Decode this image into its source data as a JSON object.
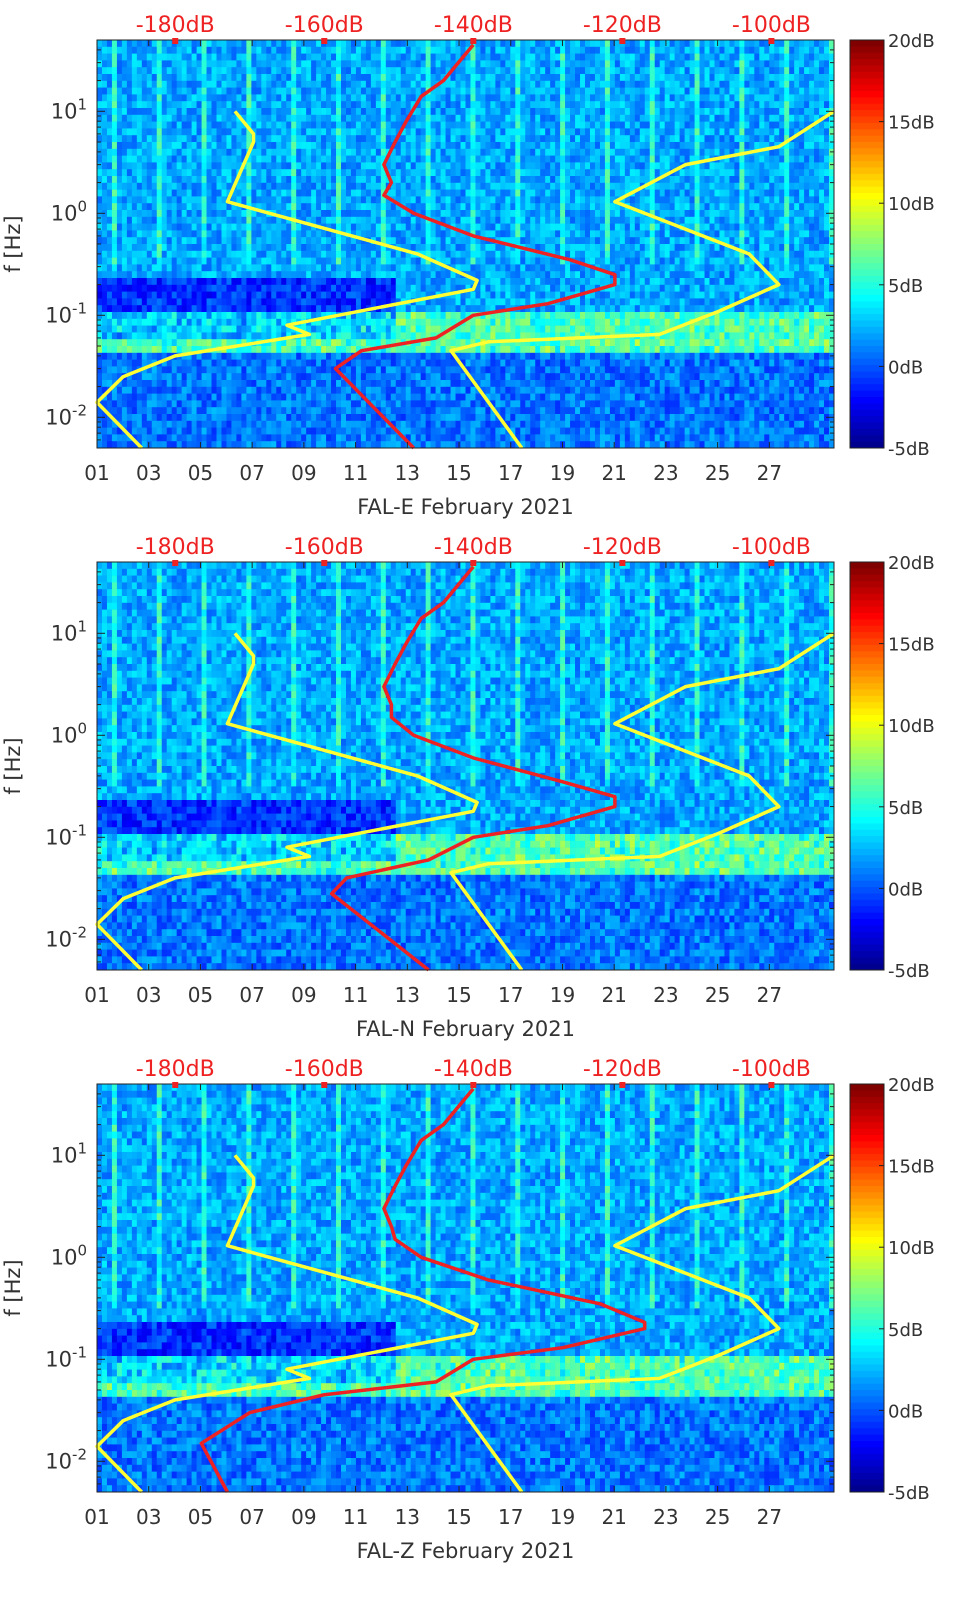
{
  "chart_data": [
    {
      "type": "heatmap",
      "title": "",
      "xlabel": "FAL-E February 2021",
      "ylabel": "f [Hz]",
      "yscale": "log",
      "ylim": [
        0.005,
        50
      ],
      "xlim": [
        1,
        29.5
      ],
      "x_ticks": [
        "01",
        "03",
        "05",
        "07",
        "09",
        "11",
        "13",
        "15",
        "17",
        "19",
        "21",
        "23",
        "25",
        "27"
      ],
      "y_ticks": [
        {
          "value": 0.01,
          "base": "10",
          "exp": "-2"
        },
        {
          "value": 0.1,
          "base": "10",
          "exp": "-1"
        },
        {
          "value": 1,
          "base": "10",
          "exp": "0"
        },
        {
          "value": 10,
          "base": "10",
          "exp": "1"
        }
      ],
      "top_axis": {
        "labels": [
          "-180dB",
          "-160dB",
          "-140dB",
          "-120dB",
          "-100dB"
        ],
        "values": [
          -180,
          -160,
          -140,
          -120,
          -100
        ],
        "xlim": [
          -190.5,
          -91.6
        ]
      },
      "colorbar": {
        "labels": [
          "20dB",
          "15dB",
          "10dB",
          "5dB",
          "0dB",
          "-5dB"
        ],
        "values": [
          20,
          15,
          10,
          5,
          0,
          -5
        ],
        "colormap": "jet"
      },
      "series": [
        {
          "color": "#ffff33",
          "axis": "top",
          "points": [
            [
              -184.5,
              0.005
            ],
            [
              -190.5,
              0.014
            ],
            [
              -187,
              0.025
            ],
            [
              -180,
              0.04
            ],
            [
              -162,
              0.065
            ],
            [
              -165,
              0.08
            ],
            [
              -140,
              0.18
            ],
            [
              -139.5,
              0.22
            ],
            [
              -147.5,
              0.4
            ],
            [
              -173,
              1.3
            ],
            [
              -169.5,
              5
            ],
            [
              -169.5,
              6
            ],
            [
              -172,
              10
            ]
          ]
        },
        {
          "color": "#ffff33",
          "axis": "top",
          "points": [
            [
              -133.5,
              0.005
            ],
            [
              -143,
              0.045
            ],
            [
              -138,
              0.055
            ],
            [
              -115,
              0.065
            ],
            [
              -107,
              0.11
            ],
            [
              -99,
              0.2
            ],
            [
              -103,
              0.4
            ],
            [
              -121,
              1.3
            ],
            [
              -111.5,
              3
            ],
            [
              -99,
              4.5
            ],
            [
              -91.6,
              10
            ]
          ]
        },
        {
          "color": "#ee2222",
          "axis": "top",
          "points": [
            [
              -148,
              0.005
            ],
            [
              -158.5,
              0.03
            ],
            [
              -155,
              0.045
            ],
            [
              -145,
              0.06
            ],
            [
              -140,
              0.1
            ],
            [
              -130,
              0.13
            ],
            [
              -121,
              0.2
            ],
            [
              -121,
              0.25
            ],
            [
              -127,
              0.35
            ],
            [
              -140,
              0.6
            ],
            [
              -148,
              1
            ],
            [
              -152,
              1.5
            ],
            [
              -151,
              2
            ],
            [
              -152,
              3
            ],
            [
              -150.5,
              5
            ],
            [
              -149,
              8
            ],
            [
              -147,
              14
            ],
            [
              -144,
              20
            ],
            [
              -142,
              30
            ],
            [
              -140,
              45
            ]
          ]
        }
      ]
    },
    {
      "type": "heatmap",
      "title": "",
      "xlabel": "FAL-N February 2021",
      "ylabel": "f [Hz]",
      "yscale": "log",
      "ylim": [
        0.005,
        50
      ],
      "xlim": [
        1,
        29.5
      ],
      "x_ticks": [
        "01",
        "03",
        "05",
        "07",
        "09",
        "11",
        "13",
        "15",
        "17",
        "19",
        "21",
        "23",
        "25",
        "27"
      ],
      "y_ticks": [
        {
          "value": 0.01,
          "base": "10",
          "exp": "-2"
        },
        {
          "value": 0.1,
          "base": "10",
          "exp": "-1"
        },
        {
          "value": 1,
          "base": "10",
          "exp": "0"
        },
        {
          "value": 10,
          "base": "10",
          "exp": "1"
        }
      ],
      "top_axis": {
        "labels": [
          "-180dB",
          "-160dB",
          "-140dB",
          "-120dB",
          "-100dB"
        ],
        "values": [
          -180,
          -160,
          -140,
          -120,
          -100
        ],
        "xlim": [
          -190.5,
          -91.6
        ]
      },
      "colorbar": {
        "labels": [
          "20dB",
          "15dB",
          "10dB",
          "5dB",
          "0dB",
          "-5dB"
        ],
        "values": [
          20,
          15,
          10,
          5,
          0,
          -5
        ],
        "colormap": "jet"
      },
      "series": [
        {
          "color": "#ffff33",
          "axis": "top",
          "points": [
            [
              -184.5,
              0.005
            ],
            [
              -190.5,
              0.014
            ],
            [
              -187,
              0.025
            ],
            [
              -180,
              0.04
            ],
            [
              -162,
              0.065
            ],
            [
              -165,
              0.08
            ],
            [
              -140,
              0.18
            ],
            [
              -139.5,
              0.22
            ],
            [
              -147.5,
              0.4
            ],
            [
              -173,
              1.3
            ],
            [
              -169.5,
              5
            ],
            [
              -169.5,
              6
            ],
            [
              -172,
              10
            ]
          ]
        },
        {
          "color": "#ffff33",
          "axis": "top",
          "points": [
            [
              -133.5,
              0.005
            ],
            [
              -143,
              0.045
            ],
            [
              -138,
              0.055
            ],
            [
              -115,
              0.065
            ],
            [
              -107,
              0.11
            ],
            [
              -99,
              0.2
            ],
            [
              -103,
              0.4
            ],
            [
              -121,
              1.3
            ],
            [
              -111.5,
              3
            ],
            [
              -99,
              4.5
            ],
            [
              -91.6,
              10
            ]
          ]
        },
        {
          "color": "#ee2222",
          "axis": "top",
          "points": [
            [
              -146,
              0.005
            ],
            [
              -159,
              0.028
            ],
            [
              -157,
              0.04
            ],
            [
              -146,
              0.06
            ],
            [
              -140,
              0.1
            ],
            [
              -130,
              0.13
            ],
            [
              -121,
              0.2
            ],
            [
              -121,
              0.25
            ],
            [
              -128,
              0.35
            ],
            [
              -140,
              0.6
            ],
            [
              -148,
              1
            ],
            [
              -151,
              1.5
            ],
            [
              -151,
              2
            ],
            [
              -152,
              3
            ],
            [
              -150.5,
              5
            ],
            [
              -149,
              8
            ],
            [
              -147,
              14
            ],
            [
              -144,
              20
            ],
            [
              -142,
              30
            ],
            [
              -140,
              45
            ]
          ]
        }
      ]
    },
    {
      "type": "heatmap",
      "title": "",
      "xlabel": "FAL-Z February 2021",
      "ylabel": "f [Hz]",
      "yscale": "log",
      "ylim": [
        0.005,
        50
      ],
      "xlim": [
        1,
        29.5
      ],
      "x_ticks": [
        "01",
        "03",
        "05",
        "07",
        "09",
        "11",
        "13",
        "15",
        "17",
        "19",
        "21",
        "23",
        "25",
        "27"
      ],
      "y_ticks": [
        {
          "value": 0.01,
          "base": "10",
          "exp": "-2"
        },
        {
          "value": 0.1,
          "base": "10",
          "exp": "-1"
        },
        {
          "value": 1,
          "base": "10",
          "exp": "0"
        },
        {
          "value": 10,
          "base": "10",
          "exp": "1"
        }
      ],
      "top_axis": {
        "labels": [
          "-180dB",
          "-160dB",
          "-140dB",
          "-120dB",
          "-100dB"
        ],
        "values": [
          -180,
          -160,
          -140,
          -120,
          -100
        ],
        "xlim": [
          -190.5,
          -91.6
        ]
      },
      "colorbar": {
        "labels": [
          "20dB",
          "15dB",
          "10dB",
          "5dB",
          "0dB",
          "-5dB"
        ],
        "values": [
          20,
          15,
          10,
          5,
          0,
          -5
        ],
        "colormap": "jet"
      },
      "series": [
        {
          "color": "#ffff33",
          "axis": "top",
          "points": [
            [
              -184.5,
              0.005
            ],
            [
              -190.5,
              0.014
            ],
            [
              -187,
              0.025
            ],
            [
              -180,
              0.04
            ],
            [
              -162,
              0.065
            ],
            [
              -165,
              0.08
            ],
            [
              -140,
              0.18
            ],
            [
              -139.5,
              0.22
            ],
            [
              -147.5,
              0.4
            ],
            [
              -173,
              1.3
            ],
            [
              -169.5,
              5
            ],
            [
              -169.5,
              6
            ],
            [
              -172,
              10
            ]
          ]
        },
        {
          "color": "#ffff33",
          "axis": "top",
          "points": [
            [
              -133.5,
              0.005
            ],
            [
              -143,
              0.045
            ],
            [
              -138,
              0.055
            ],
            [
              -115,
              0.065
            ],
            [
              -107,
              0.11
            ],
            [
              -99,
              0.2
            ],
            [
              -103,
              0.4
            ],
            [
              -121,
              1.3
            ],
            [
              -111.5,
              3
            ],
            [
              -99,
              4.5
            ],
            [
              -91.6,
              10
            ]
          ]
        },
        {
          "color": "#ee2222",
          "axis": "top",
          "points": [
            [
              -173,
              0.005
            ],
            [
              -176.5,
              0.015
            ],
            [
              -170,
              0.03
            ],
            [
              -160,
              0.045
            ],
            [
              -145,
              0.06
            ],
            [
              -140,
              0.1
            ],
            [
              -128,
              0.13
            ],
            [
              -117,
              0.2
            ],
            [
              -117,
              0.23
            ],
            [
              -123,
              0.35
            ],
            [
              -138,
              0.6
            ],
            [
              -147,
              1
            ],
            [
              -150.5,
              1.5
            ],
            [
              -151,
              2
            ],
            [
              -152,
              3
            ],
            [
              -150.5,
              5
            ],
            [
              -149,
              8
            ],
            [
              -147,
              14
            ],
            [
              -144,
              20
            ],
            [
              -142,
              30
            ],
            [
              -140,
              45
            ]
          ]
        }
      ]
    }
  ]
}
